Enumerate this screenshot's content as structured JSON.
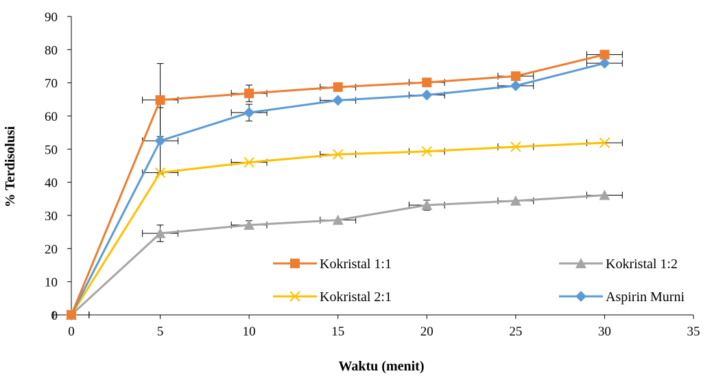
{
  "chart_data": {
    "type": "scatter",
    "title": "",
    "xlabel": "Waktu (menit)",
    "ylabel": "% Terdisolusi",
    "xlim": [
      0,
      35
    ],
    "ylim": [
      0,
      90
    ],
    "xticks": [
      0,
      5,
      10,
      15,
      20,
      25,
      30,
      35
    ],
    "yticks": [
      0,
      10,
      20,
      30,
      40,
      50,
      60,
      70,
      80,
      90
    ],
    "grid": false,
    "legend_position": "bottom-right",
    "x": [
      0,
      5,
      10,
      15,
      20,
      25,
      30
    ],
    "series": [
      {
        "name": "Kokristal 1:1",
        "color": "#ED7D31",
        "marker": "square",
        "values": [
          0,
          64.8,
          66.8,
          68.7,
          70.1,
          72.0,
          78.5
        ],
        "y_error": [
          0,
          11,
          2.5,
          0,
          0,
          0,
          0
        ],
        "x_error": 1
      },
      {
        "name": "Kokristal 1:2",
        "color": "#A5A5A5",
        "marker": "triangle",
        "values": [
          0,
          24.6,
          27.1,
          28.6,
          33.1,
          34.4,
          36.1
        ],
        "y_error": [
          0,
          2.5,
          1.3,
          0,
          1.5,
          0,
          0
        ],
        "x_error": 1
      },
      {
        "name": "Kokristal 2:1",
        "color": "#FFC000",
        "marker": "x",
        "values": [
          0,
          42.9,
          46.0,
          48.4,
          49.3,
          50.7,
          51.9
        ],
        "y_error": [
          0,
          0,
          0,
          0,
          0,
          0,
          0
        ],
        "x_error": 1
      },
      {
        "name": "Aspirin Murni",
        "color": "#5B9BD5",
        "marker": "diamond",
        "values": [
          0,
          52.5,
          61.0,
          64.7,
          66.3,
          69.1,
          75.9
        ],
        "y_error": [
          0,
          10,
          2.5,
          0,
          0,
          0,
          0
        ],
        "x_error": 1
      }
    ]
  }
}
